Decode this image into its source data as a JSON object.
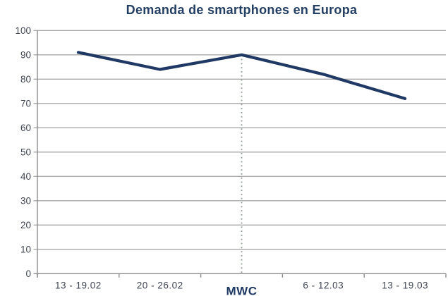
{
  "title": "Demanda de smartphones en Europa",
  "colors": {
    "background": "#ffffff",
    "title": "#243f63",
    "series_line": "#1f3864",
    "axis_labels": "#3f4450",
    "gridline": "#a8a8a8",
    "axis_line": "#8c8c8c",
    "annotation_dotted_line": "#8f9a90",
    "mwc_label": "#1f3864"
  },
  "chart_data": {
    "type": "line",
    "title": "Demanda de smartphones en Europa",
    "categories": [
      "13 - 19.02",
      "20 - 26.02",
      "MWC",
      "6 - 12.03",
      "13 - 19.03"
    ],
    "series": [
      {
        "name": "Demanda de smartphones",
        "values": [
          91,
          84,
          90,
          82,
          72
        ]
      }
    ],
    "xlabel": "",
    "ylabel": "",
    "ylim": [
      0,
      100
    ],
    "ytick_step": 10,
    "ytick_labels": [
      "0",
      "10",
      "20",
      "30",
      "40",
      "50",
      "60",
      "70",
      "80",
      "90",
      "100"
    ],
    "grid": true,
    "legend": "none",
    "annotation": {
      "label": "MWC",
      "category_index": 2,
      "style": "dotted-vertical-line",
      "emphasized_x_label": true
    }
  }
}
